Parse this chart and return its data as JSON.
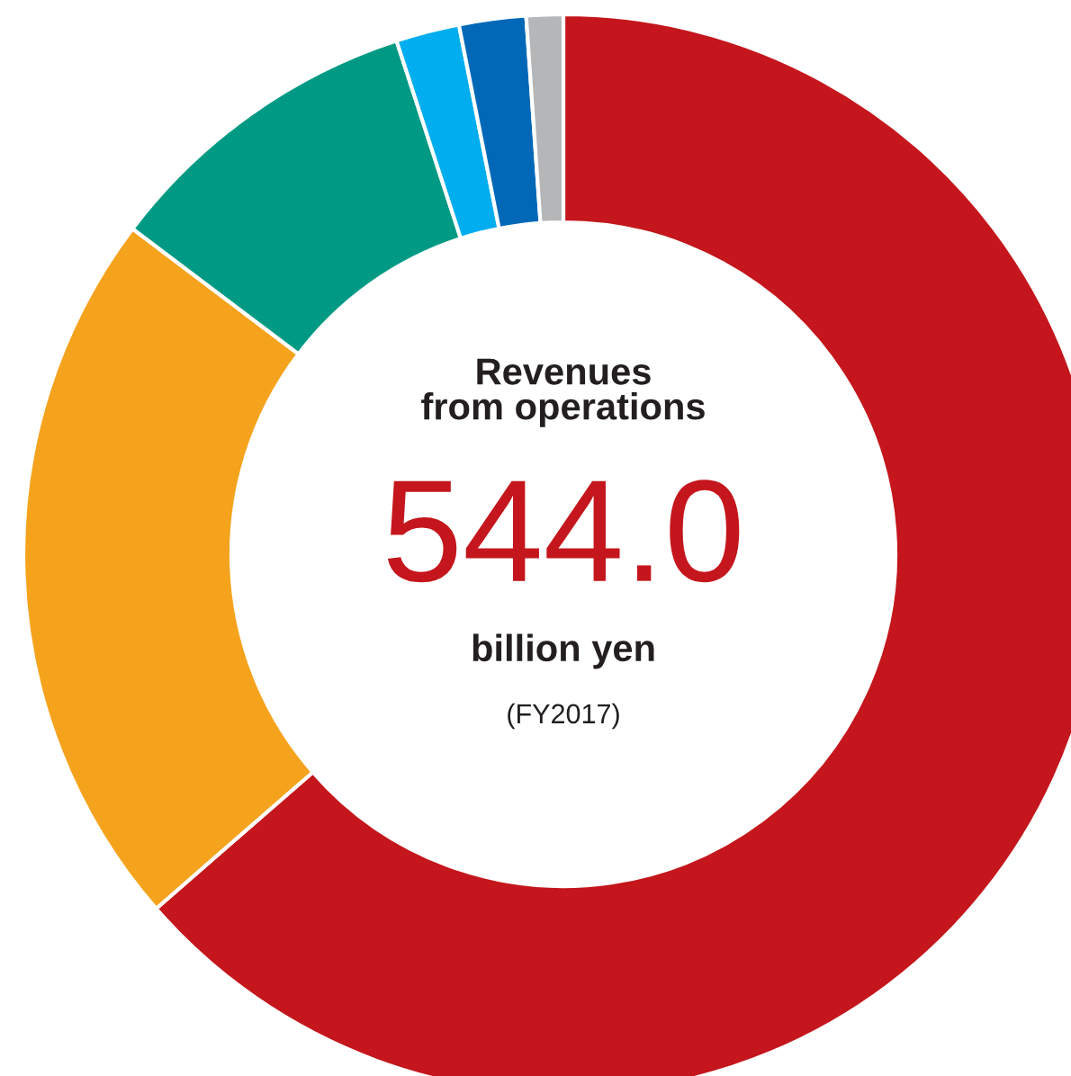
{
  "chart_data": {
    "type": "donut",
    "title": "Revenues\nfrom operations",
    "categories": [
      null,
      null,
      null,
      null,
      null,
      null
    ],
    "values": [
      63.6,
      21.7,
      9.7,
      1.9,
      2.0,
      1.1
    ],
    "colors": [
      "#c4161c",
      "#f5a31d",
      "#009a84",
      "#00aeef",
      "#0068b7",
      "#b5b6b8"
    ],
    "annotations": [
      "544.0",
      "billion yen",
      "(FY2017)"
    ]
  }
}
